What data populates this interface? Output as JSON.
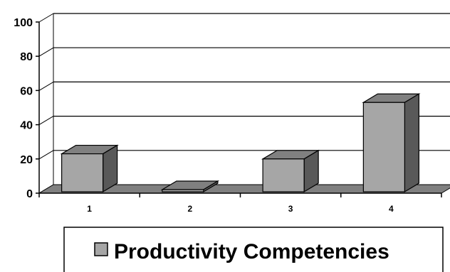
{
  "chart_data": {
    "type": "bar",
    "categories": [
      "1",
      "2",
      "3",
      "4"
    ],
    "series": [
      {
        "name": "Productivity Competencies",
        "values": [
          23,
          0,
          20,
          53
        ]
      }
    ],
    "ylim": [
      0,
      100
    ],
    "y_ticks": [
      "0",
      "20",
      "40",
      "60",
      "80",
      "100"
    ],
    "grid": true,
    "legend_position": "bottom",
    "style": "3d-column",
    "colors": {
      "bar_front": "#a6a6a6",
      "bar_top": "#808080",
      "bar_side": "#595959",
      "floor": "#808080",
      "gridline": "#000000"
    }
  }
}
